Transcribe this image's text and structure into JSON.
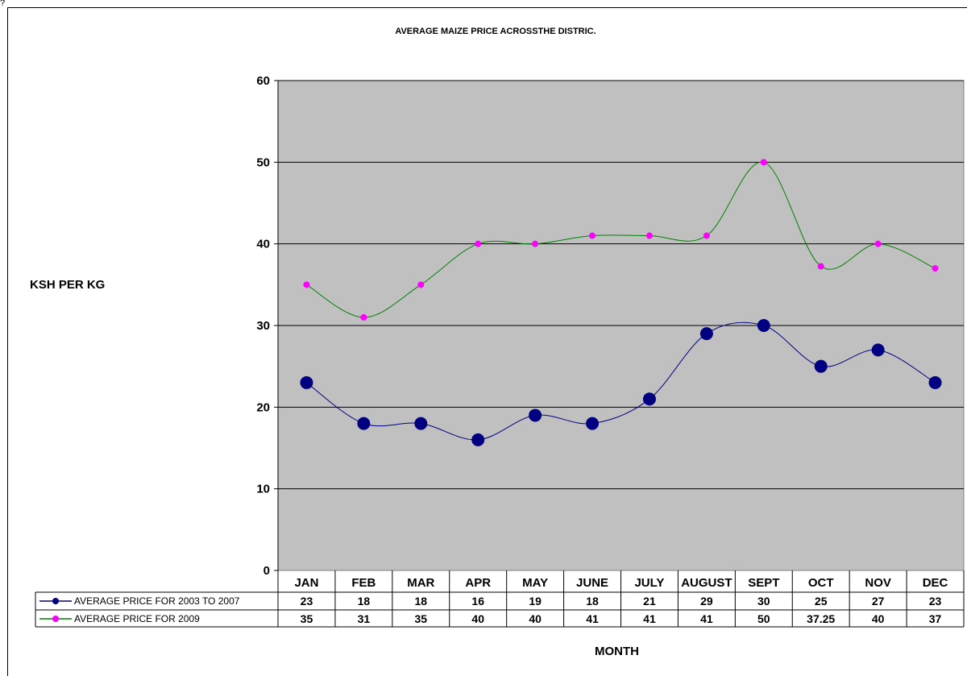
{
  "top_mark": "?",
  "chart_data": {
    "type": "line",
    "title": "AVERAGE MAIZE PRICE ACROSSTHE DISTRIC.",
    "ylabel": "KSH PER KG",
    "xlabel": "MONTH",
    "categories": [
      "JAN",
      "FEB",
      "MAR",
      "APR",
      "MAY",
      "JUNE",
      "JULY",
      "AUGUST",
      "SEPT",
      "OCT",
      "NOV",
      "DEC"
    ],
    "yticks": [
      "0",
      "10",
      "20",
      "30",
      "40",
      "50",
      "60"
    ],
    "ylim": [
      0,
      60
    ],
    "grid": true,
    "data_table": true,
    "plot_background": "#c0c0c0",
    "series": [
      {
        "name": "AVERAGE PRICE FOR 2003 TO 2007",
        "values": [
          23,
          18,
          18,
          16,
          19,
          18,
          21,
          29,
          30,
          25,
          27,
          23
        ],
        "labels": [
          "23",
          "18",
          "18",
          "16",
          "19",
          "18",
          "21",
          "29",
          "30",
          "25",
          "27",
          "23"
        ],
        "color": "#000080",
        "marker": "large-circle"
      },
      {
        "name": "AVERAGE PRICE FOR 2009",
        "values": [
          35,
          31,
          35,
          40,
          40,
          41,
          41,
          41,
          50,
          37.25,
          40,
          37
        ],
        "labels": [
          "35",
          "31",
          "35",
          "40",
          "40",
          "41",
          "41",
          "41",
          "50",
          "37.25",
          "40",
          "37"
        ],
        "color": "#008000",
        "marker_color": "#ff00ff",
        "marker": "small-circle"
      }
    ]
  }
}
